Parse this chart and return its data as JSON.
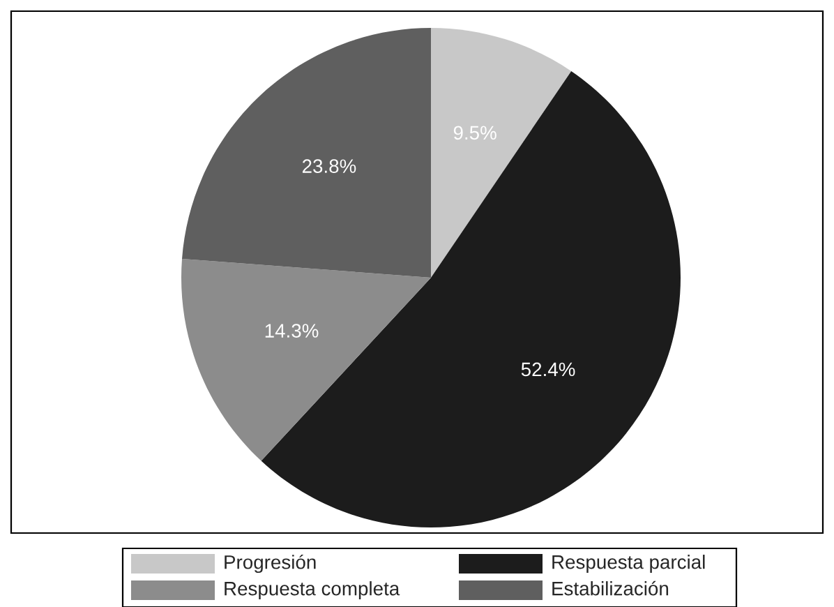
{
  "chart_data": {
    "type": "pie",
    "categories": [
      "Progresión",
      "Respuesta parcial",
      "Respuesta completa",
      "Estabilización"
    ],
    "values": [
      9.5,
      52.4,
      14.3,
      23.8
    ],
    "colors": [
      "#c8c8c8",
      "#1c1c1c",
      "#8c8c8c",
      "#5f5f5f"
    ],
    "value_labels": [
      "9.5%",
      "52.4%",
      "14.3%",
      "23.8%"
    ],
    "legend": "bottom"
  }
}
